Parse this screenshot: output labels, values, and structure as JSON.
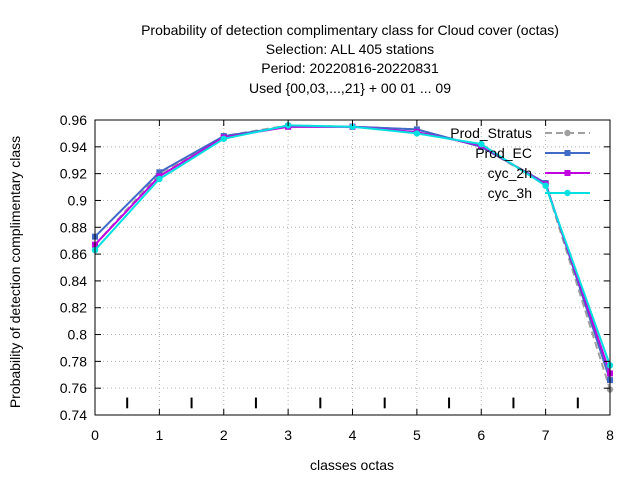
{
  "chart_data": {
    "type": "line",
    "title_lines": [
      "Probability of detection complimentary class  for Cloud cover (octas)",
      "Selection: ALL    405 stations",
      "Period: 20220816-20220831",
      "Used {00,03,...,21} + 00 01 ... 09"
    ],
    "xlabel": "classes octas",
    "ylabel": "Probability of detection complimentary class",
    "xlim": [
      0,
      8
    ],
    "ylim": [
      0.74,
      0.96
    ],
    "xticks": [
      0,
      1,
      2,
      3,
      4,
      5,
      6,
      7,
      8
    ],
    "yticks": [
      0.74,
      0.76,
      0.78,
      0.8,
      0.82,
      0.84,
      0.86,
      0.88,
      0.9,
      0.92,
      0.94,
      0.96
    ],
    "ytick_labels": [
      "0.74",
      "0.76",
      "0.78",
      "0.8",
      "0.82",
      "0.84",
      "0.86",
      "0.88",
      "0.9",
      "0.92",
      "0.94",
      "0.96"
    ],
    "grid": true,
    "legend_position": "top-right",
    "x": [
      0,
      1,
      2,
      3,
      4,
      5,
      6,
      7,
      8
    ],
    "series": [
      {
        "name": "Prod_Stratus",
        "color": "#a0a0a0",
        "dashed": true,
        "marker": "circle",
        "values": [
          0.867,
          0.92,
          0.948,
          0.956,
          0.955,
          0.953,
          0.94,
          0.912,
          0.759
        ]
      },
      {
        "name": "Prod_EC",
        "color": "#4169c8",
        "dashed": false,
        "marker": "square",
        "values": [
          0.873,
          0.921,
          0.948,
          0.955,
          0.955,
          0.953,
          0.94,
          0.913,
          0.766
        ]
      },
      {
        "name": "cyc_2h",
        "color": "#c000e0",
        "dashed": false,
        "marker": "square",
        "values": [
          0.867,
          0.918,
          0.947,
          0.955,
          0.955,
          0.951,
          0.941,
          0.912,
          0.771
        ]
      },
      {
        "name": "cyc_3h",
        "color": "#00e0e0",
        "dashed": false,
        "marker": "circle",
        "values": [
          0.863,
          0.916,
          0.946,
          0.956,
          0.955,
          0.95,
          0.942,
          0.911,
          0.777
        ]
      }
    ]
  }
}
